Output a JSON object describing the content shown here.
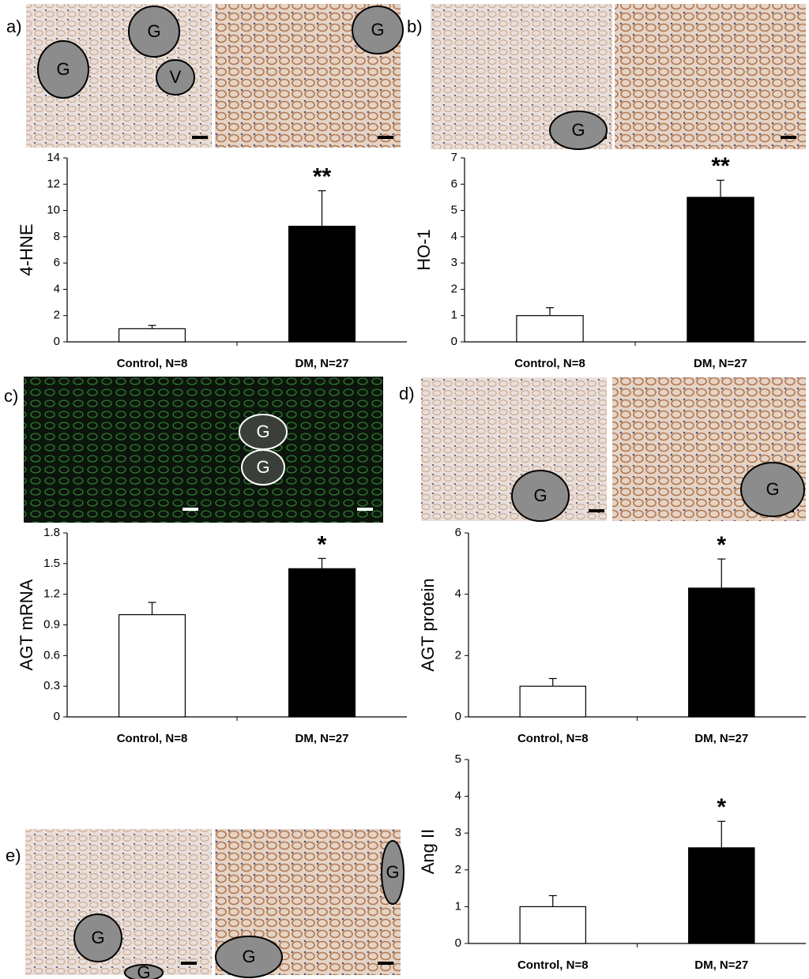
{
  "chart_data": [
    {
      "type": "bar",
      "ylabel": "4-HNE",
      "categories": [
        "Control, N=8",
        "DM, N=27"
      ],
      "values": [
        1,
        8.8
      ],
      "errors": [
        0.25,
        2.7
      ],
      "annotations": [
        null,
        "**"
      ],
      "colors": [
        "#ffffff",
        "#000000"
      ],
      "ylim": [
        0,
        14
      ],
      "yticks": [
        0,
        2,
        4,
        6,
        8,
        10,
        12,
        14
      ]
    },
    {
      "type": "bar",
      "ylabel": "HO-1",
      "categories": [
        "Control, N=8",
        "DM, N=27"
      ],
      "values": [
        1,
        5.5
      ],
      "errors": [
        0.3,
        0.65
      ],
      "annotations": [
        null,
        "**"
      ],
      "colors": [
        "#ffffff",
        "#000000"
      ],
      "ylim": [
        0,
        7
      ],
      "yticks": [
        0,
        1,
        2,
        3,
        4,
        5,
        6,
        7
      ]
    },
    {
      "type": "bar",
      "ylabel": "AGT mRNA",
      "categories": [
        "Control, N=8",
        "DM, N=27"
      ],
      "values": [
        1,
        1.45
      ],
      "errors": [
        0.12,
        0.1
      ],
      "annotations": [
        null,
        "*"
      ],
      "colors": [
        "#ffffff",
        "#000000"
      ],
      "ylim": [
        0,
        1.8
      ],
      "yticks": [
        0,
        0.3,
        0.6,
        0.9,
        1.2,
        1.5,
        1.8
      ]
    },
    {
      "type": "bar",
      "ylabel": "AGT protein",
      "categories": [
        "Control, N=8",
        "DM, N=27"
      ],
      "values": [
        1,
        4.2
      ],
      "errors": [
        0.25,
        0.95
      ],
      "annotations": [
        null,
        "*"
      ],
      "colors": [
        "#ffffff",
        "#000000"
      ],
      "ylim": [
        0,
        6
      ],
      "yticks": [
        0,
        2,
        4,
        6
      ]
    },
    {
      "type": "bar",
      "ylabel": "Ang II",
      "categories": [
        "Control, N=8",
        "DM, N=27"
      ],
      "values": [
        1,
        2.6
      ],
      "errors": [
        0.3,
        0.72
      ],
      "annotations": [
        null,
        "*"
      ],
      "colors": [
        "#ffffff",
        "#000000"
      ],
      "ylim": [
        0,
        5
      ],
      "yticks": [
        0,
        1,
        2,
        3,
        4,
        5
      ]
    }
  ],
  "panels": [
    {
      "label": "a)",
      "image_labels": [
        "G",
        "G",
        "V",
        "G"
      ]
    },
    {
      "label": "b)",
      "image_labels": [
        "G"
      ]
    },
    {
      "label": "c)",
      "image_labels": [
        "G",
        "G"
      ]
    },
    {
      "label": "d)",
      "image_labels": [
        "G",
        "G"
      ]
    },
    {
      "label": "e)",
      "image_labels": [
        "G",
        "G",
        "G",
        "G"
      ]
    }
  ]
}
